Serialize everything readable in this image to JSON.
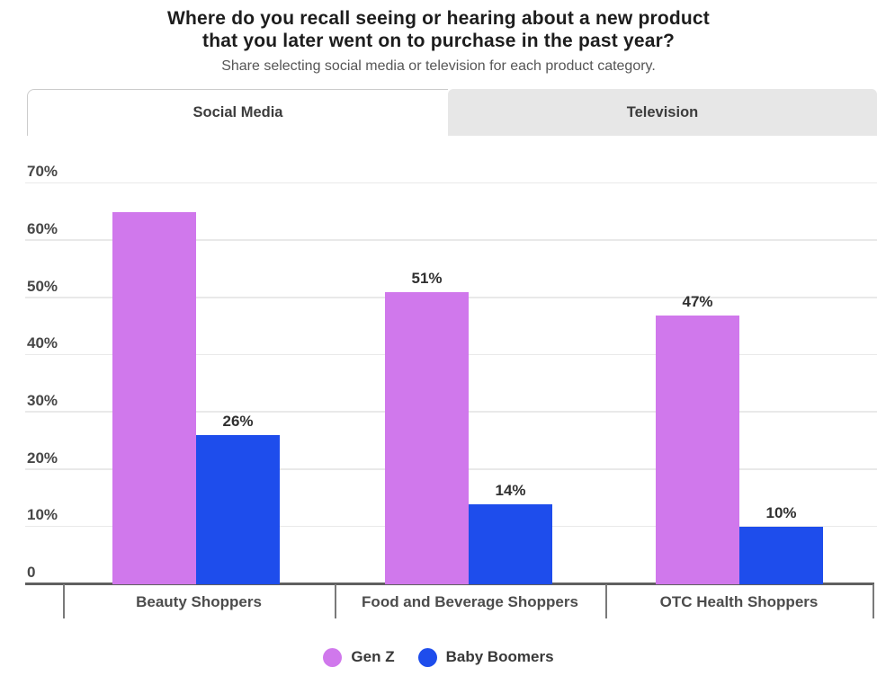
{
  "header": {
    "title_line1": "Where do you recall seeing or hearing about a new product",
    "title_line2": "that you later went on to purchase in the past year?",
    "subtitle": "Share selecting social media or television for each product category."
  },
  "tabs": [
    {
      "label": "Social Media",
      "active": true
    },
    {
      "label": "Television",
      "active": false
    }
  ],
  "chart_data": {
    "type": "bar",
    "title": "Where do you recall seeing or hearing about a new product that you later went on to purchase in the past year?",
    "subtitle": "Share selecting social media or television for each product category.",
    "active_tab": "Social Media",
    "categories": [
      "Beauty Shoppers",
      "Food and Beverage Shoppers",
      "OTC Health Shoppers"
    ],
    "series": [
      {
        "name": "Gen Z",
        "color": "#d078ec",
        "values": [
          65,
          51,
          47
        ],
        "data_labels": [
          null,
          "51%",
          "47%"
        ]
      },
      {
        "name": "Baby Boomers",
        "color": "#1e4dec",
        "values": [
          26,
          14,
          10
        ],
        "data_labels": [
          "26%",
          "14%",
          "10%"
        ]
      }
    ],
    "y_axis": {
      "ticks": [
        {
          "value": 70,
          "label": "70%"
        },
        {
          "value": 60,
          "label": "60%"
        },
        {
          "value": 50,
          "label": "50%"
        },
        {
          "value": 40,
          "label": "40%"
        },
        {
          "value": 30,
          "label": "30%"
        },
        {
          "value": 20,
          "label": "20%"
        },
        {
          "value": 10,
          "label": "10%"
        },
        {
          "value": 0,
          "label": "0"
        }
      ],
      "max": 75
    },
    "grid": true,
    "legend_position": "bottom"
  }
}
